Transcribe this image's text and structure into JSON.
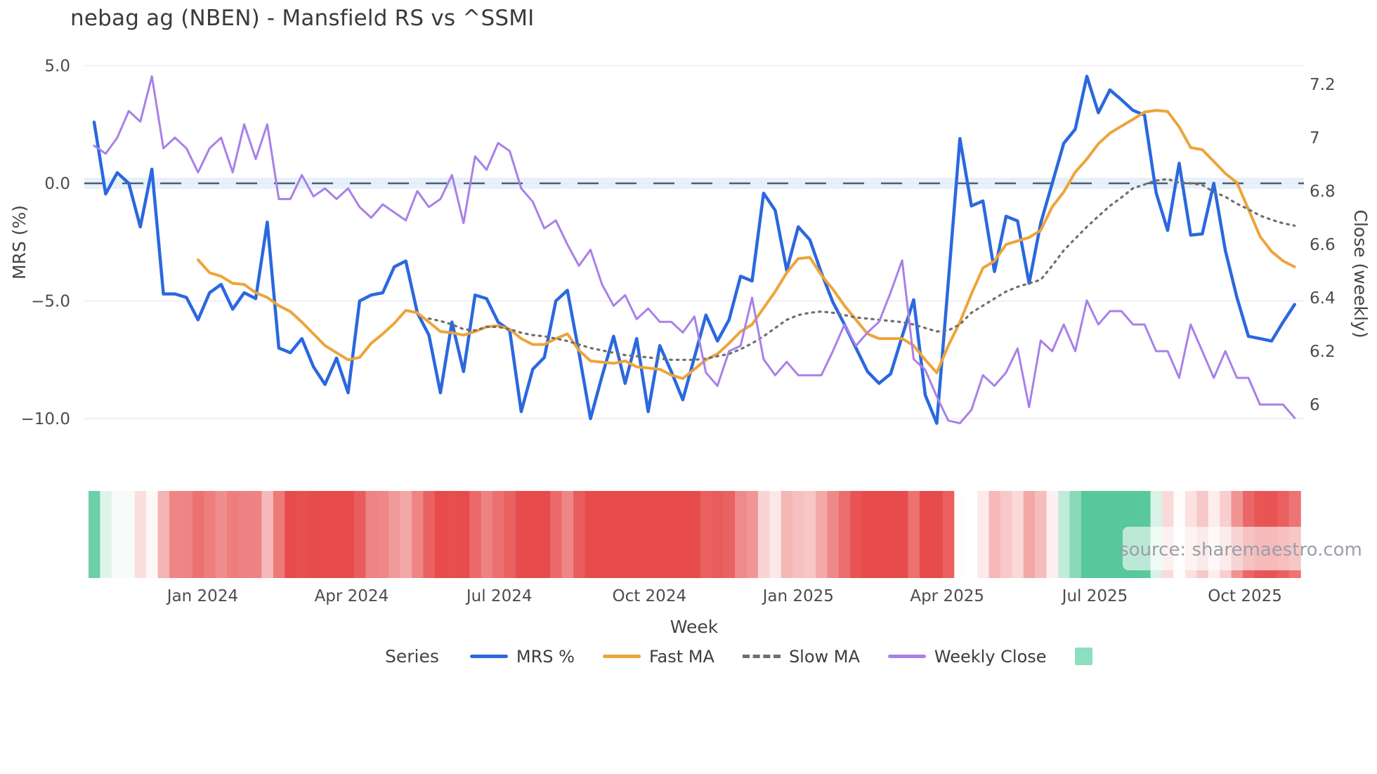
{
  "title": "nebag ag (NBEN) - Mansfield RS vs ^SSMI",
  "watermark": "source: sharemaestro.com",
  "legend": {
    "title": "Series",
    "items": [
      {
        "label": "MRS %",
        "color": "#2b68df",
        "style": "solid"
      },
      {
        "label": "Fast MA",
        "color": "#eda43a",
        "style": "solid"
      },
      {
        "label": "Slow MA",
        "color": "#6f6f6f",
        "style": "dotted"
      },
      {
        "label": "Weekly Close",
        "color": "#a980e8",
        "style": "solid"
      },
      {
        "label": "",
        "color": "#8cdfbf",
        "style": "square"
      }
    ]
  },
  "chart_data": {
    "type": "line",
    "title": "nebag ag (NBEN) - Mansfield RS vs ^SSMI",
    "xlabel": "Week",
    "ylabel_left": "MRS (%)",
    "ylabel_right": "Close (weekly)",
    "x_unit": "week-index",
    "n_points": 105,
    "grid": true,
    "zero_reference_line": 0.0,
    "left_axis": {
      "ticks": [
        5.0,
        0.0,
        -5.0,
        -10.0
      ],
      "tick_labels": [
        "5.0",
        "0.0",
        "−5.0",
        "−10.0"
      ],
      "range": [
        -10.6,
        5.5
      ]
    },
    "right_axis": {
      "ticks": [
        7.2,
        7.0,
        6.8,
        6.6,
        6.4,
        6.2,
        6.0
      ],
      "tick_labels": [
        "7.2",
        "7",
        "6.8",
        "6.6",
        "6.4",
        "6.2",
        "6"
      ],
      "range": [
        5.9,
        7.32
      ]
    },
    "x_tick_labels": [
      "Jan 2024",
      "Apr 2024",
      "Jul 2024",
      "Oct 2024",
      "Jan 2025",
      "Apr 2025",
      "Jul 2025",
      "Oct 2025"
    ],
    "x_tick_positions": [
      9.4,
      22.3,
      35.1,
      48.1,
      61.0,
      73.9,
      86.7,
      99.7
    ],
    "series": [
      {
        "name": "MRS %",
        "axis": "left",
        "color": "#2b68df",
        "style": "solid",
        "width": 4.5,
        "start_index": 0,
        "values": [
          2.6,
          -0.45,
          0.45,
          0.0,
          -1.85,
          0.6,
          -4.7,
          -4.7,
          -4.85,
          -5.8,
          -4.65,
          -4.3,
          -5.35,
          -4.65,
          -4.9,
          -1.65,
          -7.0,
          -7.2,
          -6.6,
          -7.8,
          -8.55,
          -7.43,
          -8.9,
          -5.0,
          -4.75,
          -4.65,
          -3.55,
          -3.3,
          -5.5,
          -6.45,
          -8.9,
          -5.9,
          -8.0,
          -4.75,
          -4.9,
          -5.9,
          -6.25,
          -9.7,
          -7.9,
          -7.4,
          -5.0,
          -4.55,
          -7.2,
          -10.0,
          -8.2,
          -6.5,
          -8.5,
          -6.6,
          -9.7,
          -6.9,
          -8.0,
          -9.2,
          -7.4,
          -5.6,
          -6.7,
          -5.8,
          -3.95,
          -4.15,
          -0.42,
          -1.15,
          -3.7,
          -1.85,
          -2.4,
          -3.8,
          -5.05,
          -6.0,
          -7.0,
          -8.0,
          -8.5,
          -8.1,
          -6.5,
          -4.95,
          -9.0,
          -10.2,
          -4.2,
          1.9,
          -0.96,
          -0.75,
          -3.75,
          -1.4,
          -1.6,
          -4.25,
          -1.7,
          0.0,
          1.7,
          2.3,
          4.55,
          3.0,
          3.97,
          3.55,
          3.1,
          2.9,
          -0.4,
          -2.0,
          0.85,
          -2.2,
          -2.15,
          0.0,
          -2.85,
          -4.85,
          -6.5,
          -6.6,
          -6.7,
          -5.9,
          -5.15
        ]
      },
      {
        "name": "Fast MA",
        "axis": "left",
        "color": "#eda43a",
        "style": "solid",
        "width": 4,
        "start_index": 9,
        "values": [
          -3.25,
          -3.8,
          -3.95,
          -4.25,
          -4.3,
          -4.65,
          -4.85,
          -5.2,
          -5.45,
          -5.9,
          -6.4,
          -6.9,
          -7.2,
          -7.5,
          -7.4,
          -6.8,
          -6.4,
          -5.95,
          -5.4,
          -5.5,
          -5.9,
          -6.3,
          -6.35,
          -6.45,
          -6.3,
          -6.1,
          -6.05,
          -6.2,
          -6.6,
          -6.85,
          -6.85,
          -6.6,
          -6.4,
          -7.1,
          -7.55,
          -7.6,
          -7.65,
          -7.55,
          -7.8,
          -7.85,
          -7.9,
          -8.15,
          -8.3,
          -7.9,
          -7.5,
          -7.25,
          -6.8,
          -6.3,
          -6.0,
          -5.3,
          -4.6,
          -3.8,
          -3.2,
          -3.15,
          -3.9,
          -4.5,
          -5.2,
          -5.8,
          -6.4,
          -6.6,
          -6.6,
          -6.6,
          -6.9,
          -7.5,
          -8.05,
          -6.9,
          -5.9,
          -4.7,
          -3.6,
          -3.3,
          -2.6,
          -2.45,
          -2.3,
          -2.0,
          -1.0,
          -0.37,
          0.48,
          1.03,
          1.68,
          2.13,
          2.43,
          2.72,
          3.03,
          3.1,
          3.05,
          2.4,
          1.52,
          1.43,
          0.93,
          0.42,
          0.03,
          -1.1,
          -2.25,
          -2.9,
          -3.3,
          -3.55
        ]
      },
      {
        "name": "Slow MA",
        "axis": "left",
        "color": "#6f6f6f",
        "style": "dotted",
        "width": 3.2,
        "start_index": 29,
        "values": [
          -5.75,
          -5.85,
          -6.0,
          -6.2,
          -6.25,
          -6.1,
          -6.1,
          -6.2,
          -6.35,
          -6.45,
          -6.5,
          -6.6,
          -6.7,
          -6.85,
          -7.0,
          -7.1,
          -7.2,
          -7.3,
          -7.35,
          -7.4,
          -7.45,
          -7.5,
          -7.5,
          -7.5,
          -7.45,
          -7.35,
          -7.25,
          -7.05,
          -6.8,
          -6.5,
          -6.15,
          -5.8,
          -5.6,
          -5.5,
          -5.45,
          -5.5,
          -5.6,
          -5.7,
          -5.75,
          -5.8,
          -5.85,
          -5.9,
          -6.0,
          -6.15,
          -6.3,
          -6.25,
          -6.0,
          -5.5,
          -5.2,
          -4.9,
          -4.6,
          -4.4,
          -4.25,
          -4.1,
          -3.5,
          -2.85,
          -2.35,
          -1.85,
          -1.4,
          -0.96,
          -0.6,
          -0.21,
          -0.05,
          0.12,
          0.18,
          0.03,
          0.0,
          -0.07,
          -0.37,
          -0.57,
          -0.87,
          -1.1,
          -1.37,
          -1.55,
          -1.7,
          -1.8
        ]
      },
      {
        "name": "Weekly Close",
        "axis": "right",
        "color": "#a980e8",
        "style": "solid",
        "width": 3,
        "start_index": 0,
        "values": [
          6.97,
          6.94,
          7.0,
          7.1,
          7.06,
          7.23,
          6.96,
          7.0,
          6.96,
          6.87,
          6.96,
          7.0,
          6.87,
          7.05,
          6.92,
          7.05,
          6.77,
          6.77,
          6.86,
          6.78,
          6.81,
          6.77,
          6.81,
          6.74,
          6.7,
          6.75,
          6.72,
          6.69,
          6.8,
          6.74,
          6.77,
          6.86,
          6.68,
          6.93,
          6.88,
          6.98,
          6.95,
          6.81,
          6.76,
          6.66,
          6.69,
          6.6,
          6.52,
          6.58,
          6.45,
          6.37,
          6.41,
          6.32,
          6.36,
          6.31,
          6.31,
          6.27,
          6.33,
          6.12,
          6.07,
          6.2,
          6.22,
          6.4,
          6.17,
          6.11,
          6.16,
          6.11,
          6.11,
          6.11,
          6.2,
          6.3,
          6.22,
          6.27,
          6.31,
          6.42,
          6.54,
          6.17,
          6.13,
          6.03,
          5.94,
          5.93,
          5.98,
          6.11,
          6.07,
          6.12,
          6.21,
          5.99,
          6.24,
          6.2,
          6.3,
          6.2,
          6.39,
          6.3,
          6.35,
          6.35,
          6.3,
          6.3,
          6.2,
          6.2,
          6.1,
          6.3,
          6.2,
          6.1,
          6.2,
          6.1,
          6.1,
          6.0,
          6.0,
          6.0,
          5.95
        ]
      }
    ],
    "heatmap_strip": {
      "source_series": "MRS %",
      "positive_color": "#57c89a",
      "negative_color": "#e74b4b",
      "neutral_color": "#ffffff",
      "legend_swatch_color": "#8cdfbf"
    }
  }
}
